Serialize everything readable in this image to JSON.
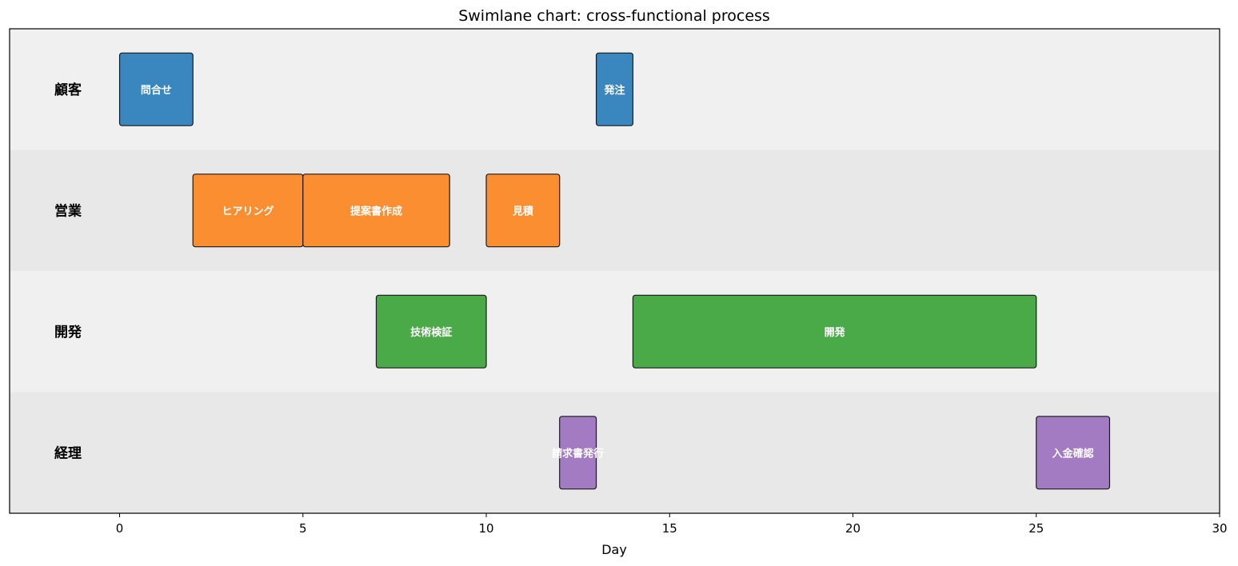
{
  "chart_data": {
    "type": "swimlane",
    "title": "Swimlane chart: cross-functional process",
    "xlabel": "Day",
    "xlim": [
      -3,
      30
    ],
    "xticks": [
      0,
      5,
      10,
      15,
      20,
      25,
      30
    ],
    "lanes": [
      {
        "name": "顧客",
        "bg": "#f0f0f0"
      },
      {
        "name": "営業",
        "bg": "#e8e8e8"
      },
      {
        "name": "開発",
        "bg": "#f0f0f0"
      },
      {
        "name": "経理",
        "bg": "#e8e8e8"
      }
    ],
    "tasks": [
      {
        "lane": 0,
        "label": "問合せ",
        "start": 0,
        "end": 2,
        "color": "#3a87c0"
      },
      {
        "lane": 0,
        "label": "発注",
        "start": 13,
        "end": 14,
        "color": "#3a87c0"
      },
      {
        "lane": 1,
        "label": "ヒアリング",
        "start": 2,
        "end": 5,
        "color": "#fb8e31"
      },
      {
        "lane": 1,
        "label": "提案書作成",
        "start": 5,
        "end": 9,
        "color": "#fb8e31"
      },
      {
        "lane": 1,
        "label": "見積",
        "start": 10,
        "end": 12,
        "color": "#fb8e31"
      },
      {
        "lane": 2,
        "label": "技術検証",
        "start": 7,
        "end": 10,
        "color": "#4aaa48"
      },
      {
        "lane": 2,
        "label": "開発",
        "start": 14,
        "end": 25,
        "color": "#4aaa48"
      },
      {
        "lane": 3,
        "label": "請求書発行",
        "start": 12,
        "end": 13,
        "color": "#a27bc2"
      },
      {
        "lane": 3,
        "label": "入金確認",
        "start": 25,
        "end": 27,
        "color": "#a27bc2"
      }
    ]
  }
}
